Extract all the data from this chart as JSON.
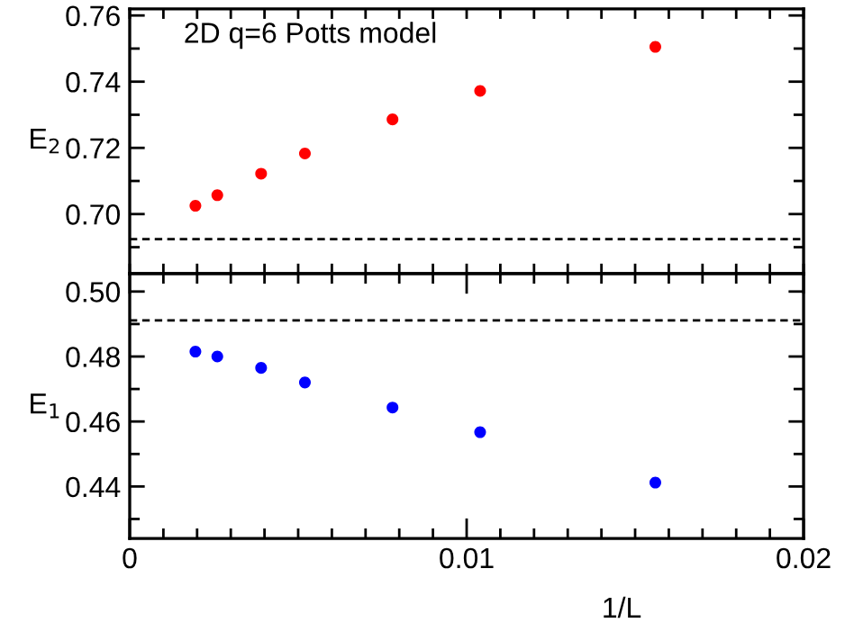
{
  "chart_data": [
    {
      "type": "scatter",
      "ylabel": "E$_{2}$",
      "annotations": [
        "2D q=6 Potts model"
      ],
      "marker": "circle",
      "tick_labels": "y",
      "x": [
        0.00195,
        0.0026,
        0.0039,
        0.0052,
        0.0078,
        0.0104,
        0.0156
      ],
      "series": [
        {
          "color": "#ff0000",
          "values": [
            0.7025,
            0.7057,
            0.7122,
            0.7183,
            0.7286,
            0.7372,
            0.7505
          ]
        }
      ],
      "xlim": [
        0,
        0.02
      ],
      "xticks": [
        {
          "value": 0,
          "label": null
        },
        {
          "value": 0.01,
          "label": null
        },
        {
          "value": 0.02,
          "label": null
        }
      ],
      "ylim": [
        0.682,
        0.762
      ],
      "yticks": [
        {
          "value": 0.69,
          "label": null
        },
        {
          "value": 0.7,
          "label": "0.70"
        },
        {
          "value": 0.71,
          "label": null
        },
        0.72,
        {
          "value": 0.73,
          "label": null
        },
        0.74,
        {
          "value": 0.75,
          "label": null
        },
        0.76
      ],
      "ref_lines": [
        {
          "axis": "y",
          "value": 0.6924,
          "color": "#000000",
          "line_style": "dashed"
        }
      ],
      "grid": false,
      "legend": false
    },
    {
      "type": "scatter",
      "ylabel": "E$_{1}$",
      "xlabel": "1/L",
      "marker": "circle",
      "x": [
        0.00195,
        0.0026,
        0.0039,
        0.0052,
        0.0078,
        0.0104,
        0.0156
      ],
      "series": [
        {
          "color": "#0000ff",
          "values": [
            0.4815,
            0.48,
            0.4765,
            0.472,
            0.4643,
            0.4567,
            0.4412
          ]
        }
      ],
      "xlim": [
        0,
        0.02
      ],
      "xticks": [
        0,
        0.01,
        0.02
      ],
      "ylim": [
        0.424,
        0.5055
      ],
      "yticks": [
        {
          "value": 0.43,
          "label": null
        },
        0.44,
        {
          "value": 0.45,
          "label": null
        },
        0.46,
        {
          "value": 0.47,
          "label": null
        },
        0.48,
        {
          "value": 0.49,
          "label": null
        },
        {
          "value": 0.5,
          "label": "0.50"
        }
      ],
      "ref_lines": [
        {
          "axis": "y",
          "value": 0.4911,
          "color": "#000000",
          "line_style": "dashed"
        }
      ],
      "grid": false,
      "legend": false
    }
  ]
}
